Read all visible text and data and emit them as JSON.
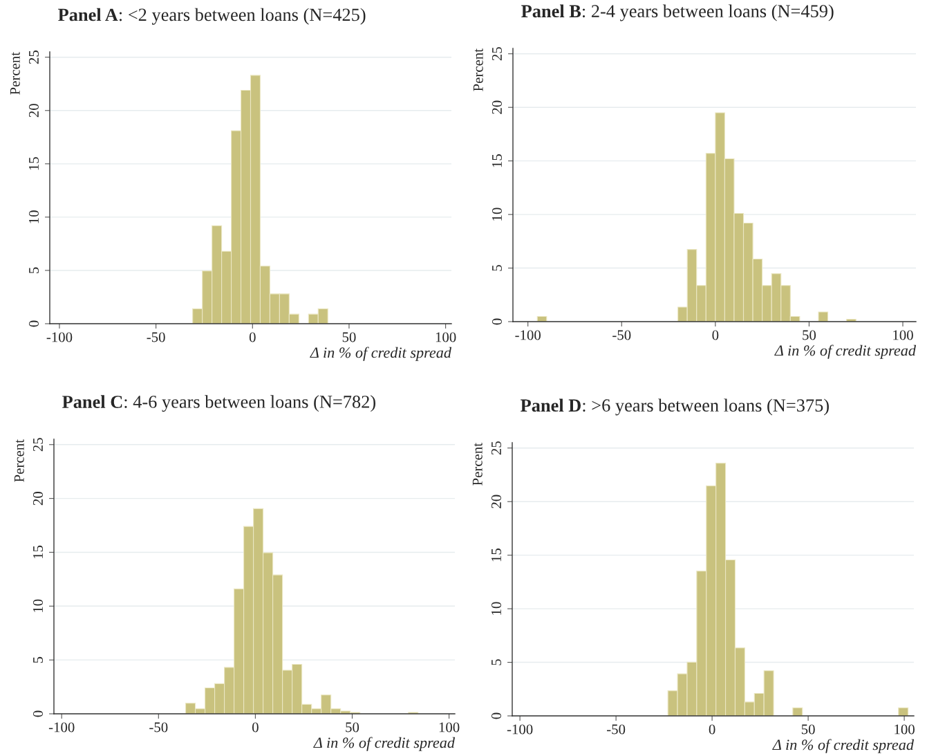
{
  "chart_data": [
    {
      "type": "histogram",
      "title": "Panel A: <2 years between loans (N=425)",
      "xlabel": "Δ in % of credit spread",
      "ylabel": "Percent",
      "color": "#c9c27e",
      "bins": [
        -31,
        -26,
        -21,
        -16,
        -11,
        -6,
        -1,
        4,
        9,
        14,
        19,
        24,
        29,
        34,
        39
      ],
      "values": [
        1.4,
        4.95,
        9.2,
        6.8,
        18.1,
        21.9,
        23.3,
        5.4,
        2.8,
        2.8,
        0.9,
        0,
        0.9,
        1.4
      ],
      "xlim": [
        -105,
        103
      ],
      "xticks": [
        -100,
        -50,
        0,
        50,
        100
      ],
      "ylim": [
        0,
        25.5
      ],
      "yticks": [
        0,
        5,
        10,
        15,
        20,
        25
      ],
      "grid": "y"
    },
    {
      "type": "histogram",
      "title": "Panel B: 2-4 years between loans (N=459)",
      "xlabel": "Δ in % of credit spread",
      "ylabel": "Percent",
      "color": "#c9c27e",
      "bins": [
        -95,
        -90,
        -85,
        -80,
        -75,
        -70,
        -65,
        -60,
        -55,
        -50,
        -45,
        -40,
        -35,
        -30,
        -25,
        -20,
        -15,
        -10,
        -5,
        0,
        5,
        10,
        15,
        20,
        25,
        30,
        35,
        40,
        45,
        50,
        55,
        60,
        65,
        70,
        75
      ],
      "values": [
        0.48,
        0,
        0,
        0,
        0,
        0,
        0,
        0,
        0,
        0,
        0,
        0,
        0,
        0,
        0,
        1.36,
        6.74,
        3.37,
        15.7,
        19.5,
        15.2,
        10.1,
        9.2,
        5.84,
        3.37,
        4.48,
        3.37,
        0.48,
        0,
        0,
        0.9,
        0,
        0,
        0.23
      ],
      "xlim": [
        -108,
        107
      ],
      "xticks": [
        -100,
        -50,
        0,
        50,
        100
      ],
      "ylim": [
        0,
        25.5
      ],
      "yticks": [
        0,
        5,
        10,
        15,
        20,
        25
      ],
      "grid": "y"
    },
    {
      "type": "histogram",
      "title": "Panel C: 4-6 years between loans (N=782)",
      "xlabel": "Δ in % of credit spread",
      "ylabel": "Percent",
      "color": "#c9c27e",
      "bins": [
        -36,
        -31,
        -26,
        -21,
        -16,
        -11,
        -6,
        -1,
        4,
        9,
        14,
        19,
        24,
        29,
        34,
        39,
        44,
        49,
        54,
        59,
        64,
        69,
        74,
        79,
        84
      ],
      "values": [
        0.99,
        0.47,
        2.41,
        2.8,
        4.31,
        11.6,
        17.4,
        19.05,
        14.96,
        12.9,
        4.05,
        4.59,
        0.88,
        0.47,
        1.75,
        0.47,
        0.26,
        0.13,
        0,
        0,
        0,
        0,
        0,
        0.13
      ],
      "xlim": [
        -104,
        103
      ],
      "xticks": [
        -100,
        -50,
        0,
        50,
        100
      ],
      "ylim": [
        0,
        25.5
      ],
      "yticks": [
        0,
        5,
        10,
        15,
        20,
        25
      ],
      "grid": "y"
    },
    {
      "type": "histogram",
      "title": "Panel D: >6 years between loans (N=375)",
      "xlabel": "Δ in % of credit spread",
      "ylabel": "Percent",
      "color": "#c9c27e",
      "bins": [
        -23,
        -18,
        -13,
        -8,
        -3,
        2,
        7,
        12,
        17,
        22,
        27,
        32,
        37,
        42,
        47,
        52,
        57,
        62,
        67,
        72,
        77,
        82,
        87,
        92,
        97,
        102
      ],
      "values": [
        2.35,
        3.93,
        5.01,
        13.52,
        21.47,
        23.59,
        14.56,
        6.35,
        1.3,
        2.1,
        4.21,
        0,
        0,
        0.76,
        0,
        0,
        0,
        0,
        0,
        0,
        0,
        0,
        0,
        0,
        0.76
      ],
      "xlim": [
        -104,
        105
      ],
      "xticks": [
        -100,
        -50,
        0,
        50,
        100
      ],
      "ylim": [
        0,
        25.5
      ],
      "yticks": [
        0,
        5,
        10,
        15,
        20,
        25
      ],
      "grid": "y"
    }
  ]
}
